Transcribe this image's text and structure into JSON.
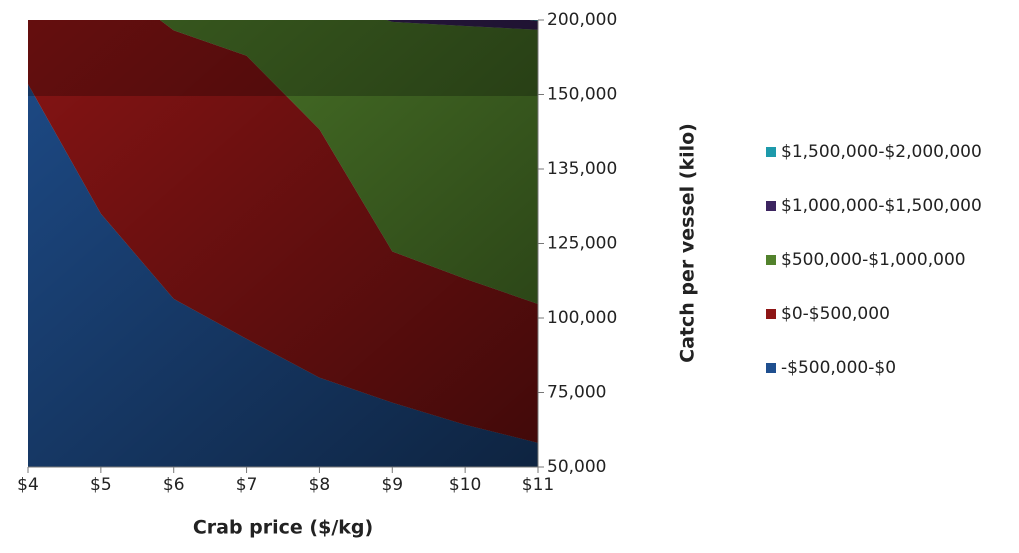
{
  "chart_data": {
    "type": "contour",
    "x_title": "Crab price  ($/kg)",
    "y_title": "Catch per vessel (kilo)",
    "categories": [
      "$4",
      "$5",
      "$6",
      "$7",
      "$8",
      "$9",
      "$10",
      "$11"
    ],
    "ylim": [
      50000,
      200000
    ],
    "yticks": [
      {
        "value": 50000,
        "label": "50,000"
      },
      {
        "value": 75000,
        "label": "75,000"
      },
      {
        "value": 100000,
        "label": "100,000"
      },
      {
        "value": 125000,
        "label": "125,000"
      },
      {
        "value": 135000,
        "label": "135,000"
      },
      {
        "value": 150000,
        "label": "150,000"
      },
      {
        "value": 200000,
        "label": "200,000"
      }
    ],
    "series": [
      {
        "name": "-$500,000-$0",
        "color": "#1f4f8f",
        "values": [
          50000,
          50000,
          50000,
          50000,
          50000,
          50000,
          50000,
          50000
        ]
      },
      {
        "name": "$0-$500,000",
        "color": "#8e1515",
        "values": [
          157000,
          129000,
          106400,
          93000,
          80000,
          71600,
          64200,
          58100
        ]
      },
      {
        "name": "$500,000-$1,000,000",
        "color": "#52822c",
        "values": [
          260000,
          230000,
          193000,
          176000,
          143000,
          122300,
          113200,
          104700
        ]
      },
      {
        "name": "$1,000,000-$1,500,000",
        "color": "#3c2560",
        "values": [
          340000,
          300000,
          270000,
          240000,
          215000,
          198700,
          196000,
          193400
        ]
      },
      {
        "name": "$1,500,000-$2,000,000",
        "color": "#1d9aab",
        "values": [
          420000,
          380000,
          340000,
          300000,
          260000,
          230000,
          205000,
          199300
        ]
      }
    ]
  }
}
